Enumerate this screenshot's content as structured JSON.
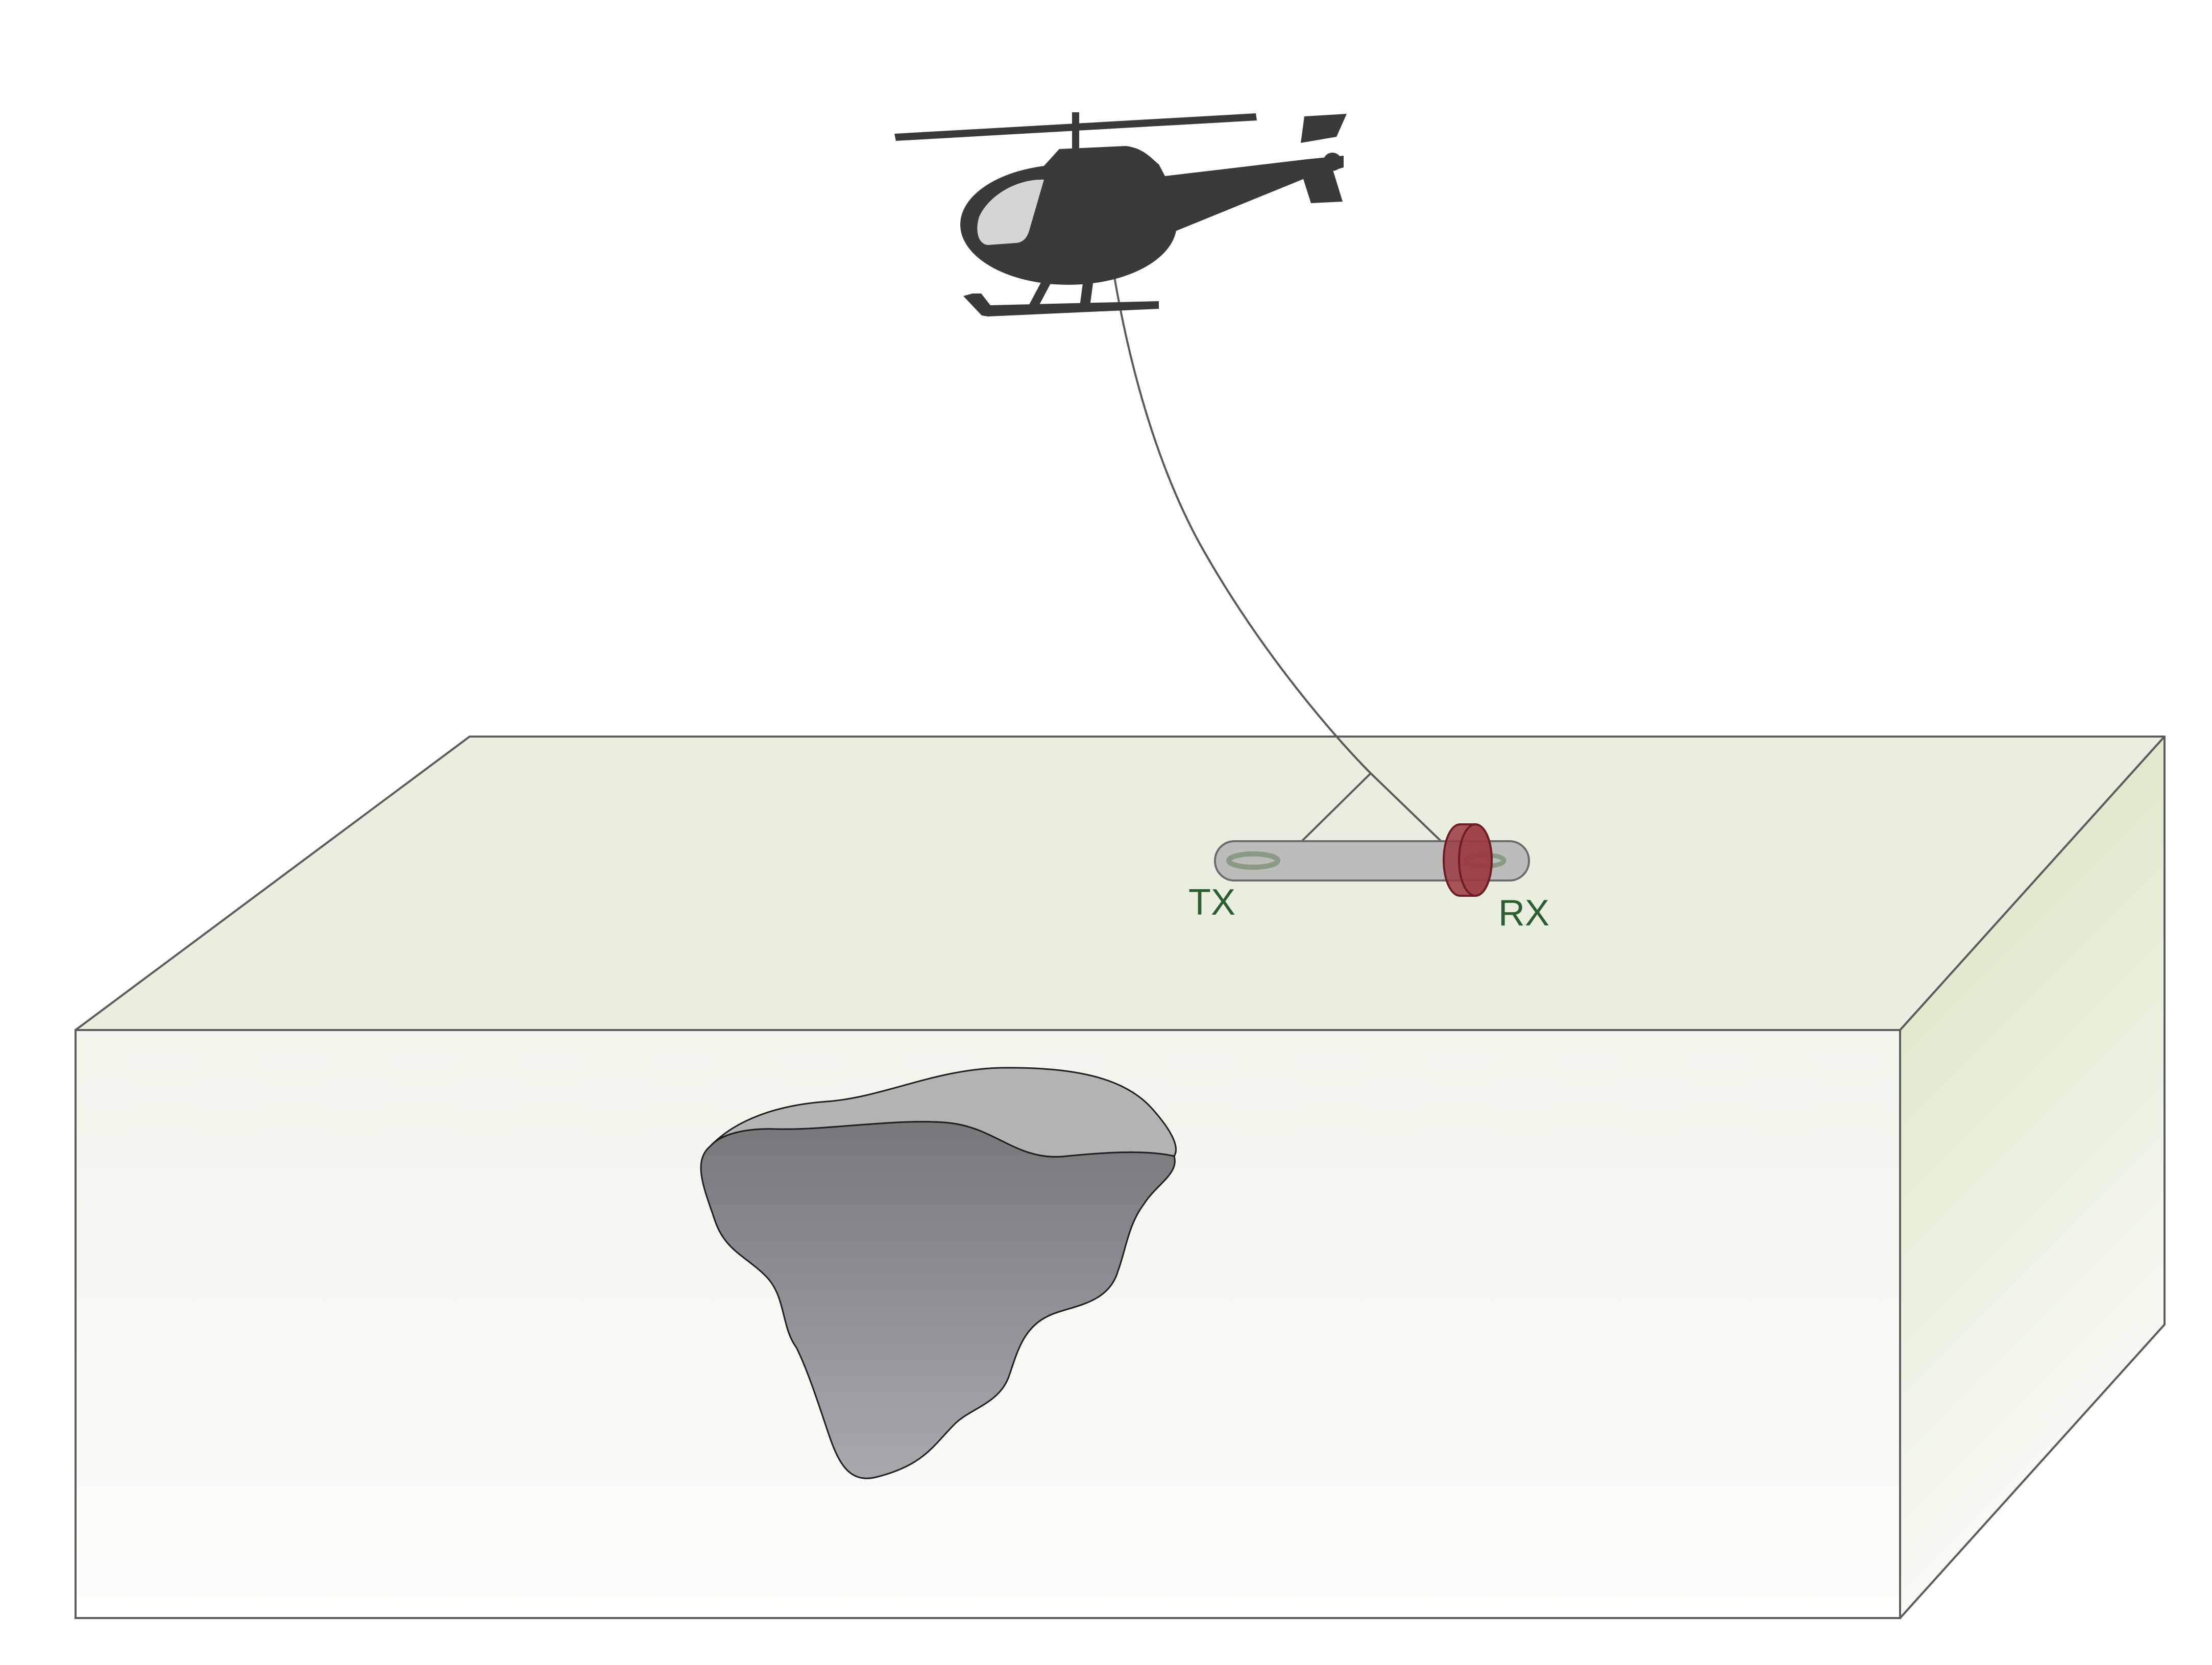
{
  "labels": {
    "transmitter": "TX",
    "receiver": "RX"
  },
  "colors": {
    "ground_top": "#eaeedf",
    "ground_front_top": "#f2f5ec",
    "ground_front_bottom": "#fdfdfb",
    "ground_side_top": "#d3e2bc",
    "ground_side_bottom": "#fbfcf8",
    "ground_outline": "#5c5c5c",
    "helicopter": "#3a3a3a",
    "helicopter_window": "#d5d5d6",
    "tow_cable": "#5a5a5a",
    "bird_body": "#bcbcbb",
    "bird_outline": "#6b6b6b",
    "tx_coil": "#8a9a85",
    "rx_coil": "#9c3a42",
    "rx_coil_outline": "#6e1d24",
    "ore_body_top": "#b3b3b3",
    "ore_body_front_top": "#77787c",
    "ore_body_front_bottom": "#a8a9ad",
    "label_text": "#2d5e33"
  },
  "icons": {
    "aircraft": "helicopter-icon"
  }
}
